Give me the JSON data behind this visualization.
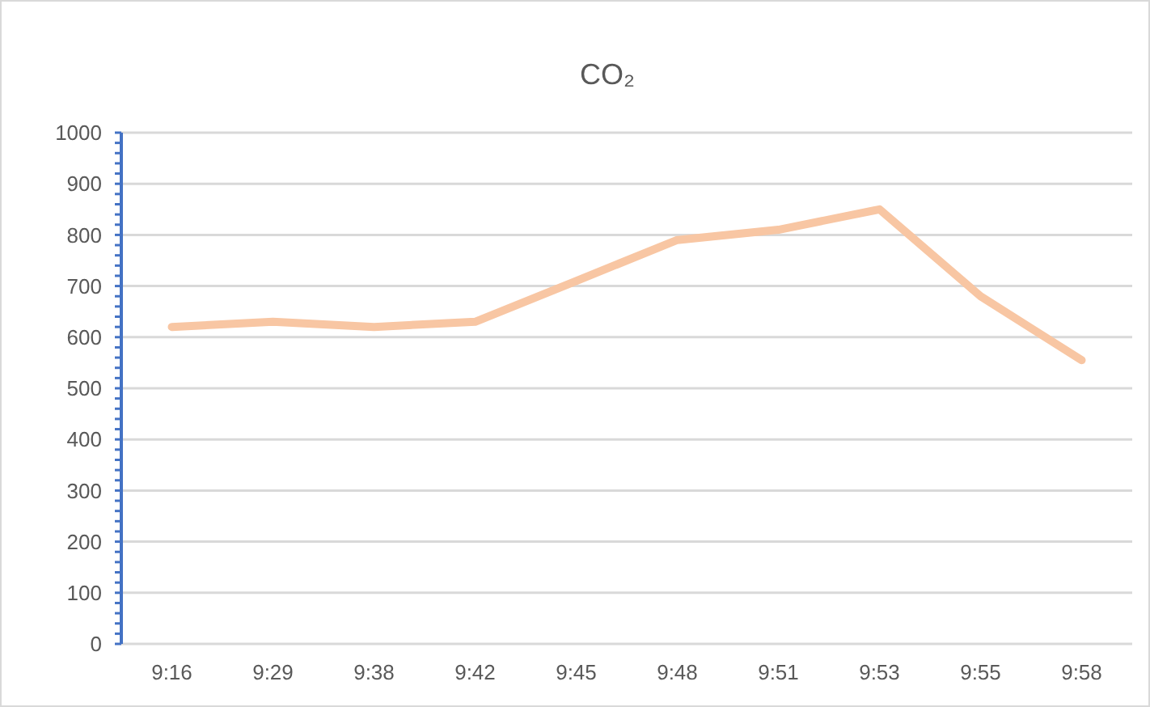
{
  "chart_data": {
    "type": "line",
    "title": "CO₂",
    "categories": [
      "9:16",
      "9:29",
      "9:38",
      "9:42",
      "9:45",
      "9:48",
      "9:51",
      "9:53",
      "9:55",
      "9:58"
    ],
    "series": [
      {
        "color": "#f8c6a3",
        "values": [
          620,
          630,
          620,
          630,
          710,
          790,
          810,
          850,
          680,
          555
        ]
      }
    ],
    "ylim": [
      0,
      1000
    ],
    "yticks": [
      0,
      {
        "value": 20,
        "label": null
      },
      {
        "value": 40,
        "label": null
      },
      {
        "value": 60,
        "label": null
      },
      {
        "value": 80,
        "label": null
      },
      100,
      {
        "value": 120,
        "label": null
      },
      {
        "value": 140,
        "label": null
      },
      {
        "value": 160,
        "label": null
      },
      {
        "value": 180,
        "label": null
      },
      200,
      {
        "value": 220,
        "label": null
      },
      {
        "value": 240,
        "label": null
      },
      {
        "value": 260,
        "label": null
      },
      {
        "value": 280,
        "label": null
      },
      300,
      {
        "value": 320,
        "label": null
      },
      {
        "value": 340,
        "label": null
      },
      {
        "value": 360,
        "label": null
      },
      {
        "value": 380,
        "label": null
      },
      400,
      {
        "value": 420,
        "label": null
      },
      {
        "value": 440,
        "label": null
      },
      {
        "value": 460,
        "label": null
      },
      {
        "value": 480,
        "label": null
      },
      500,
      {
        "value": 520,
        "label": null
      },
      {
        "value": 540,
        "label": null
      },
      {
        "value": 560,
        "label": null
      },
      {
        "value": 580,
        "label": null
      },
      600,
      {
        "value": 620,
        "label": null
      },
      {
        "value": 640,
        "label": null
      },
      {
        "value": 660,
        "label": null
      },
      {
        "value": 680,
        "label": null
      },
      700,
      {
        "value": 720,
        "label": null
      },
      {
        "value": 740,
        "label": null
      },
      {
        "value": 760,
        "label": null
      },
      {
        "value": 780,
        "label": null
      },
      800,
      {
        "value": 820,
        "label": null
      },
      {
        "value": 840,
        "label": null
      },
      {
        "value": 860,
        "label": null
      },
      {
        "value": 880,
        "label": null
      },
      900,
      {
        "value": 920,
        "label": null
      },
      {
        "value": 940,
        "label": null
      },
      {
        "value": 960,
        "label": null
      },
      {
        "value": 980,
        "label": null
      },
      1000
    ],
    "grid": "y",
    "marker": "none",
    "line_style": "solid"
  }
}
